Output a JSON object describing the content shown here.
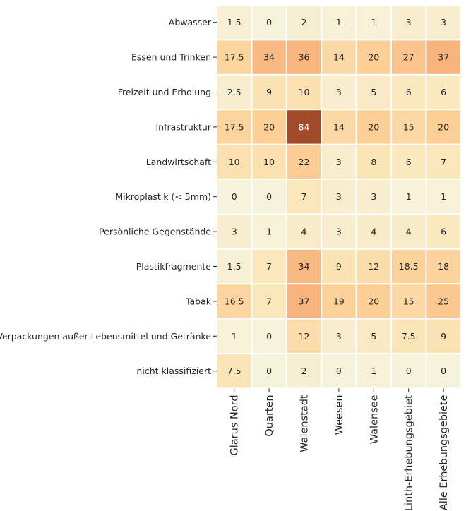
{
  "chart_data": {
    "type": "heatmap",
    "title": "",
    "xlabel": "",
    "ylabel": "",
    "rows": [
      "Abwasser",
      "Essen und Trinken",
      "Freizeit und Erholung",
      "Infrastruktur",
      "Landwirtschaft",
      "Mikroplastik (< 5mm)",
      "Persönliche Gegenstände",
      "Plastikfragmente",
      "Tabak",
      "Verpackungen außer Lebensmittel und Getränke",
      "nicht klassifiziert"
    ],
    "columns": [
      "Glarus Nord",
      "Quarten",
      "Walenstadt",
      "Weesen",
      "Walensee",
      "Linth-Erhebungsgebiet",
      "Alle Erhebungsgebiete"
    ],
    "values": [
      [
        1.5,
        0,
        2,
        1,
        1,
        3,
        3
      ],
      [
        17.5,
        34,
        36,
        14,
        20,
        27,
        37
      ],
      [
        2.5,
        9,
        10,
        3,
        5,
        6,
        6
      ],
      [
        17.5,
        20,
        84,
        14,
        20,
        15,
        20
      ],
      [
        10,
        10,
        22,
        3,
        8,
        6,
        7
      ],
      [
        0,
        0,
        7,
        3,
        3,
        1,
        1
      ],
      [
        3,
        1,
        4,
        3,
        4,
        4,
        6
      ],
      [
        1.5,
        7,
        34,
        9,
        12,
        18.5,
        18
      ],
      [
        16.5,
        7,
        37,
        19,
        20,
        15,
        25
      ],
      [
        1,
        0,
        12,
        3,
        5,
        7.5,
        9
      ],
      [
        7.5,
        0,
        2,
        0,
        1,
        0,
        0
      ]
    ],
    "labels": [
      [
        "1.5",
        "0",
        "2",
        "1",
        "1",
        "3",
        "3"
      ],
      [
        "17.5",
        "34",
        "36",
        "14",
        "20",
        "27",
        "37"
      ],
      [
        "2.5",
        "9",
        "10",
        "3",
        "5",
        "6",
        "6"
      ],
      [
        "17.5",
        "20",
        "84",
        "14",
        "20",
        "15",
        "20"
      ],
      [
        "10",
        "10",
        "22",
        "3",
        "8",
        "6",
        "7"
      ],
      [
        "0",
        "0",
        "7",
        "3",
        "3",
        "1",
        "1"
      ],
      [
        "3",
        "1",
        "4",
        "3",
        "4",
        "4",
        "6"
      ],
      [
        "1.5",
        "7",
        "34",
        "9",
        "12",
        "18.5",
        "18"
      ],
      [
        "16.5",
        "7",
        "37",
        "19",
        "20",
        "15",
        "25"
      ],
      [
        "1",
        "0",
        "12",
        "3",
        "5",
        "7.5",
        "9"
      ],
      [
        "7.5",
        "0",
        "2",
        "0",
        "1",
        "0",
        "0"
      ]
    ],
    "colorscale": [
      "#f6f3dc",
      "#fbe3b4",
      "#fccf97",
      "#f7b57d",
      "#c8643a",
      "#a24b2a"
    ],
    "color_range": [
      0,
      84
    ],
    "grid_color": "#ffffff",
    "legend": "none"
  }
}
